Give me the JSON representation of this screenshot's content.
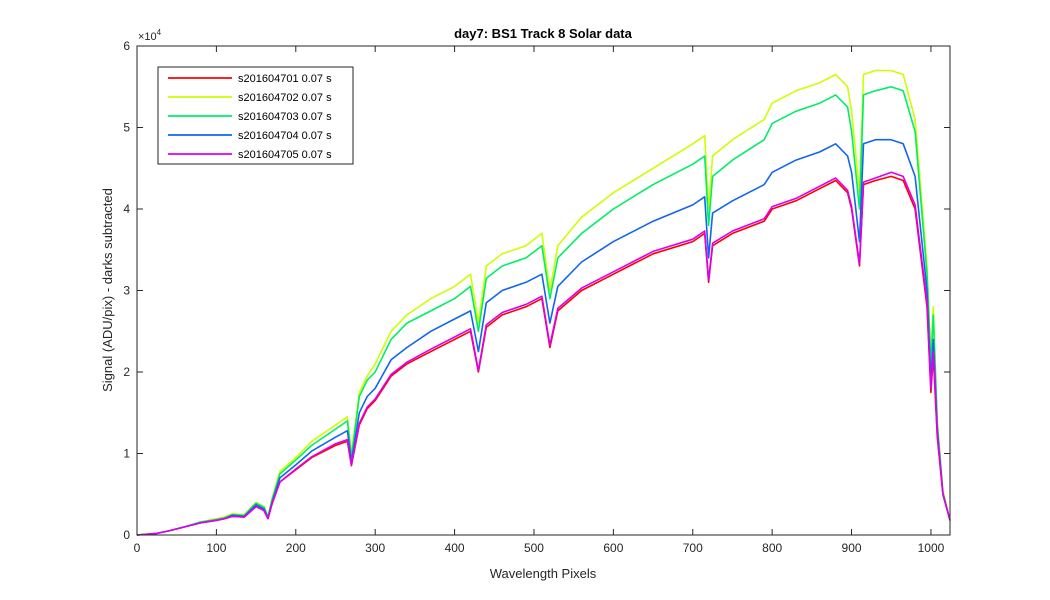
{
  "chart_data": {
    "type": "line",
    "title": "day7: BS1  Track 8 Solar data",
    "xlabel": "Wavelength Pixels",
    "ylabel": "Signal (ADU/pix) - darks subtracted",
    "y_exponent_label": "×10",
    "y_exponent_power": "4",
    "xlim": [
      0,
      1024
    ],
    "ylim": [
      0,
      60000
    ],
    "x_ticks": [
      0,
      100,
      200,
      300,
      400,
      500,
      600,
      700,
      800,
      900,
      1000
    ],
    "x_tick_labels": [
      "0",
      "100",
      "200",
      "300",
      "400",
      "500",
      "600",
      "700",
      "800",
      "900",
      "1000"
    ],
    "y_ticks": [
      0,
      10000,
      20000,
      30000,
      40000,
      50000,
      60000
    ],
    "y_tick_labels": [
      "0",
      "1",
      "2",
      "3",
      "4",
      "5",
      "6"
    ],
    "grid": false,
    "legend_position": "top-left",
    "series": [
      {
        "name": "s201604701 0.07 s",
        "color": "#ff0000",
        "x": [
          0,
          25,
          40,
          60,
          80,
          100,
          110,
          120,
          135,
          150,
          160,
          165,
          170,
          180,
          200,
          220,
          250,
          265,
          270,
          280,
          290,
          300,
          320,
          340,
          370,
          400,
          420,
          430,
          440,
          460,
          490,
          510,
          520,
          530,
          560,
          600,
          650,
          700,
          715,
          720,
          725,
          750,
          790,
          800,
          830,
          860,
          880,
          895,
          900,
          910,
          915,
          930,
          950,
          965,
          980,
          995,
          1000,
          1003,
          1008,
          1015,
          1024
        ],
        "y": [
          0,
          200,
          500,
          1000,
          1500,
          1800,
          2000,
          2300,
          2200,
          3500,
          3000,
          2000,
          3800,
          6500,
          8000,
          9500,
          11000,
          11500,
          8500,
          13500,
          15500,
          16500,
          19500,
          21000,
          22500,
          24000,
          25000,
          20000,
          25500,
          27000,
          28000,
          29000,
          23000,
          27500,
          30000,
          32000,
          34500,
          36000,
          37000,
          31000,
          35500,
          37000,
          38500,
          40000,
          41000,
          42500,
          43500,
          42000,
          40000,
          33000,
          43000,
          43500,
          44000,
          43500,
          40000,
          28000,
          17500,
          22000,
          12000,
          5000,
          1800
        ]
      },
      {
        "name": "s201604702 0.07 s",
        "color": "#ccff00",
        "x": [
          0,
          25,
          40,
          60,
          80,
          100,
          110,
          120,
          135,
          150,
          160,
          165,
          170,
          180,
          200,
          220,
          250,
          265,
          270,
          280,
          290,
          300,
          320,
          340,
          370,
          400,
          420,
          430,
          440,
          460,
          490,
          510,
          520,
          530,
          560,
          600,
          650,
          700,
          715,
          720,
          725,
          750,
          790,
          800,
          830,
          860,
          880,
          895,
          900,
          910,
          915,
          930,
          950,
          965,
          980,
          995,
          1000,
          1003,
          1008,
          1015,
          1024
        ],
        "y": [
          0,
          200,
          500,
          1000,
          1600,
          2000,
          2200,
          2600,
          2500,
          4000,
          3500,
          2300,
          4500,
          7800,
          9500,
          11500,
          13500,
          14500,
          10000,
          17500,
          19500,
          21000,
          25000,
          27000,
          29000,
          30500,
          32000,
          26000,
          33000,
          34500,
          35500,
          37000,
          30000,
          35500,
          39000,
          42000,
          45000,
          48000,
          49000,
          40000,
          46500,
          48500,
          51000,
          53000,
          54500,
          55500,
          56500,
          55000,
          52000,
          42000,
          56500,
          57000,
          57000,
          56500,
          51000,
          33000,
          22000,
          28000,
          14000,
          5500,
          1800
        ]
      },
      {
        "name": "s201604703 0.07 s",
        "color": "#00ee66",
        "x": [
          0,
          25,
          40,
          60,
          80,
          100,
          110,
          120,
          135,
          150,
          160,
          165,
          170,
          180,
          200,
          220,
          250,
          265,
          270,
          280,
          290,
          300,
          320,
          340,
          370,
          400,
          420,
          430,
          440,
          460,
          490,
          510,
          520,
          530,
          560,
          600,
          650,
          700,
          715,
          720,
          725,
          750,
          790,
          800,
          830,
          860,
          880,
          895,
          900,
          910,
          915,
          930,
          950,
          965,
          980,
          995,
          1000,
          1003,
          1008,
          1015,
          1024
        ],
        "y": [
          0,
          200,
          500,
          1000,
          1600,
          1900,
          2100,
          2500,
          2400,
          3900,
          3400,
          2200,
          4300,
          7500,
          9200,
          11000,
          13000,
          14000,
          9500,
          17000,
          19000,
          20000,
          24000,
          26000,
          27500,
          29000,
          30500,
          25000,
          31500,
          33000,
          34000,
          35500,
          29000,
          34000,
          37000,
          40000,
          43000,
          45500,
          46500,
          38000,
          44000,
          46000,
          48500,
          50500,
          52000,
          53000,
          54000,
          52500,
          49500,
          40000,
          54000,
          54500,
          55000,
          54500,
          49500,
          32000,
          21000,
          27000,
          13500,
          5200,
          1800
        ]
      },
      {
        "name": "s201604704 0.07 s",
        "color": "#1166ee",
        "x": [
          0,
          25,
          40,
          60,
          80,
          100,
          110,
          120,
          135,
          150,
          160,
          165,
          170,
          180,
          200,
          220,
          250,
          265,
          270,
          280,
          290,
          300,
          320,
          340,
          370,
          400,
          420,
          430,
          440,
          460,
          490,
          510,
          520,
          530,
          560,
          600,
          650,
          700,
          715,
          720,
          725,
          750,
          790,
          800,
          830,
          860,
          880,
          895,
          900,
          910,
          915,
          930,
          950,
          965,
          980,
          995,
          1000,
          1003,
          1008,
          1015,
          1024
        ],
        "y": [
          0,
          200,
          500,
          1000,
          1500,
          1800,
          2000,
          2400,
          2300,
          3700,
          3200,
          2100,
          4000,
          7000,
          8600,
          10300,
          12000,
          12800,
          9000,
          15000,
          17000,
          18000,
          21500,
          23000,
          25000,
          26500,
          27500,
          22500,
          28500,
          30000,
          31000,
          32000,
          26000,
          30500,
          33500,
          36000,
          38500,
          40500,
          41500,
          34000,
          39500,
          41000,
          43000,
          44500,
          46000,
          47000,
          48000,
          46500,
          44500,
          36000,
          48000,
          48500,
          48500,
          48000,
          44000,
          30000,
          19000,
          24000,
          13000,
          5000,
          1800
        ]
      },
      {
        "name": "s201604705 0.07 s",
        "color": "#dd00ee",
        "x": [
          0,
          25,
          40,
          60,
          80,
          100,
          110,
          120,
          135,
          150,
          160,
          165,
          170,
          180,
          200,
          220,
          250,
          265,
          270,
          280,
          290,
          300,
          320,
          340,
          370,
          400,
          420,
          430,
          440,
          460,
          490,
          510,
          520,
          530,
          560,
          600,
          650,
          700,
          715,
          720,
          725,
          750,
          790,
          800,
          830,
          860,
          880,
          895,
          900,
          910,
          915,
          930,
          950,
          965,
          980,
          995,
          1000,
          1003,
          1008,
          1015,
          1024
        ],
        "y": [
          0,
          200,
          500,
          1000,
          1500,
          1800,
          2000,
          2300,
          2200,
          3500,
          3000,
          2000,
          3800,
          6500,
          8100,
          9600,
          11200,
          11700,
          8600,
          13700,
          15700,
          16700,
          19700,
          21200,
          22800,
          24300,
          25300,
          20200,
          25800,
          27300,
          28300,
          29300,
          23300,
          27800,
          30300,
          32300,
          34800,
          36300,
          37300,
          31300,
          35800,
          37300,
          38800,
          40300,
          41300,
          42800,
          43800,
          42300,
          40300,
          33300,
          43300,
          43800,
          44500,
          44000,
          40500,
          28500,
          18000,
          22500,
          12300,
          5100,
          1800
        ]
      }
    ]
  }
}
